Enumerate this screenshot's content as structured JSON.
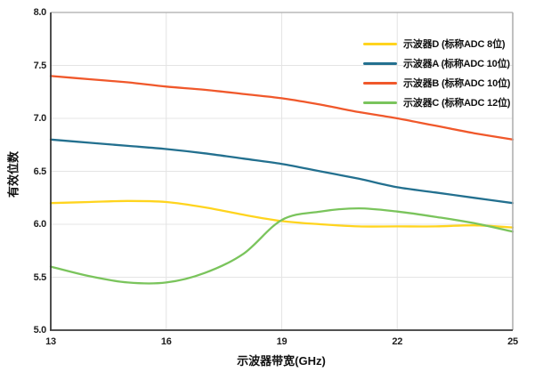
{
  "chart_data": {
    "type": "line",
    "title": "",
    "xlabel": "示波器带宽(GHz)",
    "ylabel": "有效位数",
    "xlim": [
      13,
      25
    ],
    "ylim": [
      5.0,
      8.0
    ],
    "x_ticks": [
      13,
      16,
      19,
      22,
      25
    ],
    "y_ticks": [
      5.0,
      5.5,
      6.0,
      6.5,
      7.0,
      7.5,
      8.0
    ],
    "grid": true,
    "legend_position": "top-right",
    "x": [
      13,
      14,
      15,
      16,
      17,
      18,
      19,
      20,
      21,
      22,
      23,
      24,
      25
    ],
    "series": [
      {
        "name": "示波器D (标称ADC 8位)",
        "color": "#FFD41E",
        "values": [
          6.2,
          6.21,
          6.22,
          6.21,
          6.16,
          6.09,
          6.03,
          6.0,
          5.98,
          5.98,
          5.98,
          5.99,
          5.97
        ]
      },
      {
        "name": "示波器A (标称ADC 10位)",
        "color": "#23708F",
        "values": [
          6.8,
          6.77,
          6.74,
          6.71,
          6.67,
          6.62,
          6.57,
          6.5,
          6.43,
          6.35,
          6.3,
          6.25,
          6.2
        ]
      },
      {
        "name": "示波器B (标称ADC 10位)",
        "color": "#F0582B",
        "values": [
          7.4,
          7.37,
          7.34,
          7.3,
          7.27,
          7.23,
          7.19,
          7.13,
          7.06,
          7.0,
          6.93,
          6.86,
          6.8
        ]
      },
      {
        "name": "示波器C (标称ADC 12位)",
        "color": "#7AC45C",
        "values": [
          5.6,
          5.51,
          5.45,
          5.45,
          5.54,
          5.72,
          6.04,
          6.12,
          6.15,
          6.12,
          6.07,
          6.01,
          5.93
        ]
      }
    ],
    "style": {
      "grid_color": "#E4E4E4",
      "axis_color": "#3A3A3A",
      "frame_color": "#ABABAB",
      "plot_bg": "#FFFFFF"
    }
  }
}
